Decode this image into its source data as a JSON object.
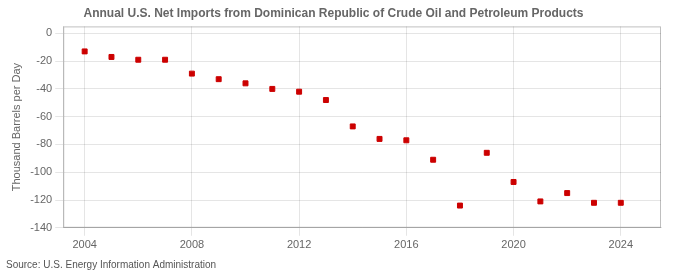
{
  "chart_data": {
    "type": "scatter",
    "title": "Annual U.S. Net Imports from Dominican Republic of Crude Oil and Petroleum Products",
    "ylabel": "Thousand Barrels per Day",
    "annotations": [
      "Source: U.S. Energy Information Administration"
    ],
    "x": [
      2004,
      2005,
      2006,
      2007,
      2008,
      2009,
      2010,
      2011,
      2012,
      2013,
      2014,
      2015,
      2016,
      2017,
      2018,
      2019,
      2020,
      2021,
      2022,
      2023,
      2024
    ],
    "values": [
      -13,
      -17,
      -19,
      -19,
      -29,
      -33,
      -36,
      -40,
      -42,
      -48,
      -67,
      -76,
      -77,
      -91,
      -124,
      -86,
      -107,
      -121,
      -115,
      -122,
      -122
    ],
    "color": "#cc0000",
    "marker": "square",
    "xlim": [
      2003.2,
      2025.5
    ],
    "ylim": [
      -140,
      5
    ],
    "xticks": [
      2004,
      2008,
      2012,
      2016,
      2020,
      2024
    ],
    "yticks": [
      0,
      -20,
      -40,
      -60,
      -80,
      -100,
      -120,
      -140
    ],
    "grid": true
  }
}
